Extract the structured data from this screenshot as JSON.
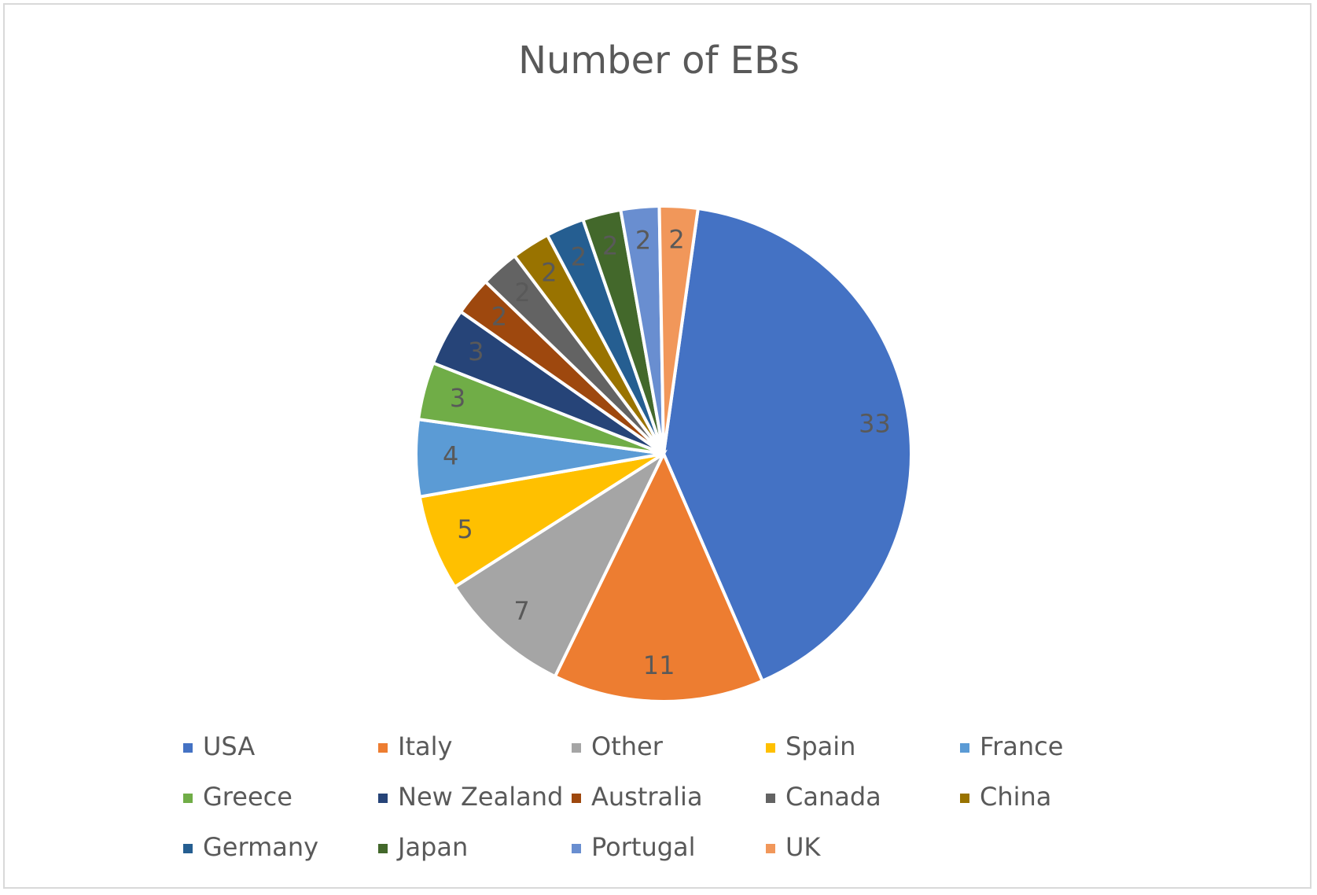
{
  "chart_data": {
    "type": "pie",
    "title": "Number of EBs",
    "categories": [
      "USA",
      "Italy",
      "Other",
      "Spain",
      "France",
      "Greece",
      "New Zealand",
      "Australia",
      "Canada",
      "China",
      "Germany",
      "Japan",
      "Portugal",
      "UK"
    ],
    "values": [
      33,
      11,
      7,
      5,
      4,
      3,
      3,
      2,
      2,
      2,
      2,
      2,
      2,
      2
    ],
    "colors": [
      "#4472c4",
      "#ed7d31",
      "#a5a5a5",
      "#ffc000",
      "#5b9bd5",
      "#70ad47",
      "#264478",
      "#9e480e",
      "#636363",
      "#997300",
      "#255e91",
      "#43682b",
      "#698ed0",
      "#f1975a"
    ],
    "legend": "bottom"
  }
}
